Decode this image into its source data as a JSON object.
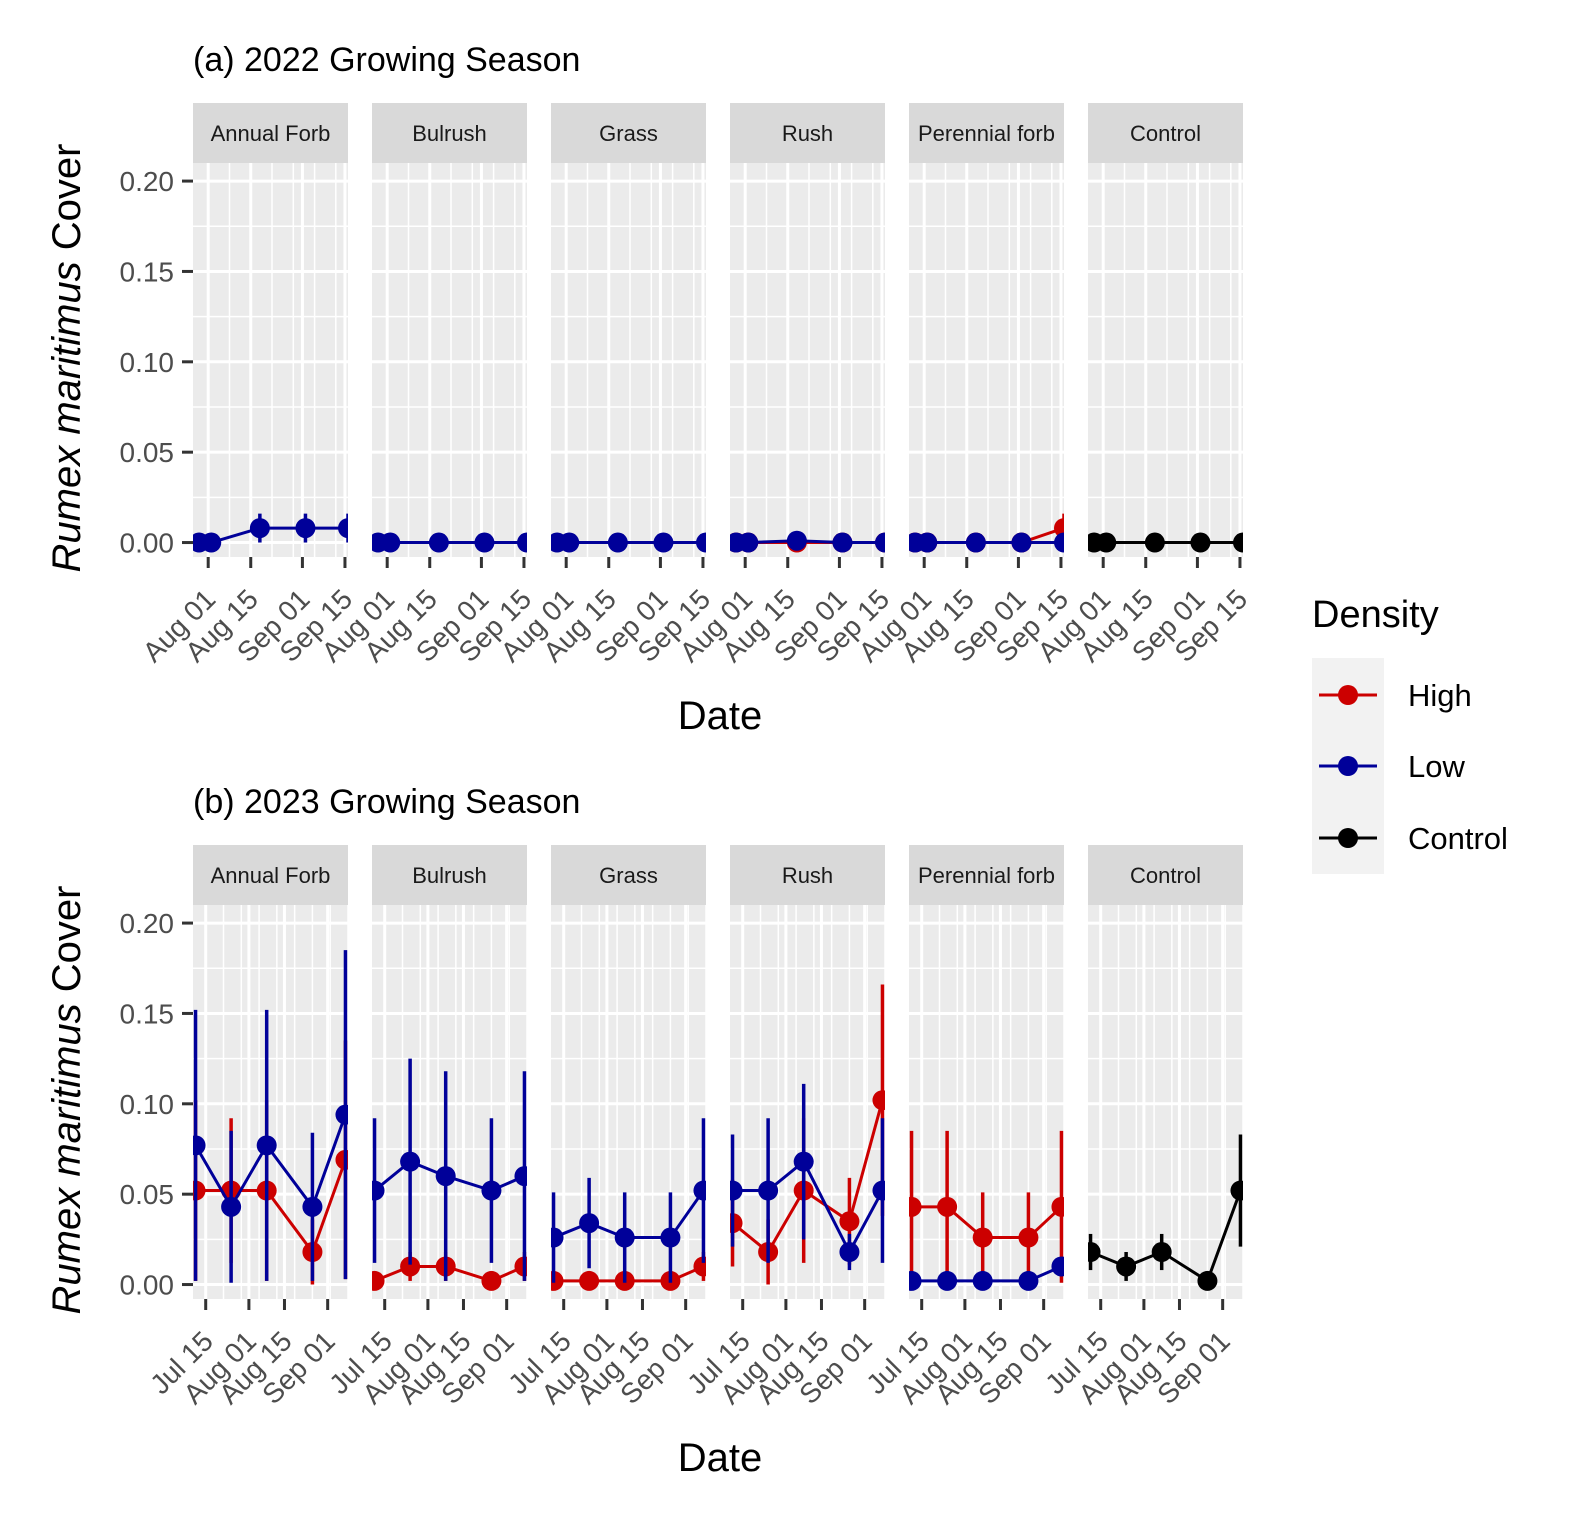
{
  "chart_data": [
    {
      "type": "line",
      "title": "(a) 2022 Growing Season",
      "xlabel": "Date",
      "ylabel_italic": "Rumex maritimus",
      "ylabel_rest": " Cover",
      "ylim": [
        -0.008,
        0.21
      ],
      "yticks": [
        0.0,
        0.05,
        0.1,
        0.15,
        0.2
      ],
      "yticklabels": [
        "0.00",
        "0.05",
        "0.10",
        "0.15",
        "0.20"
      ],
      "xlim": [
        "2022-07-27",
        "2022-09-16"
      ],
      "xticks": [
        "2022-08-01",
        "2022-08-15",
        "2022-09-01",
        "2022-09-15"
      ],
      "xticklabels": [
        "Aug 01",
        "Aug 15",
        "Sep 01",
        "Sep 15"
      ],
      "grid": true,
      "panels": [
        {
          "name": "Annual Forb",
          "series": [
            {
              "name": "Low",
              "x": [
                "2022-07-29",
                "2022-08-02",
                "2022-08-18",
                "2022-09-02",
                "2022-09-16"
              ],
              "y": [
                0,
                0,
                0.008,
                0.008,
                0.008
              ],
              "err": [
                0,
                0,
                0.008,
                0.008,
                0.008
              ]
            }
          ]
        },
        {
          "name": "Bulrush",
          "series": [
            {
              "name": "Low",
              "x": [
                "2022-07-29",
                "2022-08-02",
                "2022-08-18",
                "2022-09-02",
                "2022-09-16"
              ],
              "y": [
                0,
                0,
                0,
                0,
                0
              ],
              "err": [
                0,
                0,
                0,
                0,
                0
              ]
            }
          ]
        },
        {
          "name": "Grass",
          "series": [
            {
              "name": "Low",
              "x": [
                "2022-07-29",
                "2022-08-02",
                "2022-08-18",
                "2022-09-02",
                "2022-09-16"
              ],
              "y": [
                0,
                0,
                0,
                0,
                0
              ],
              "err": [
                0,
                0,
                0,
                0,
                0
              ]
            }
          ]
        },
        {
          "name": "Rush",
          "series": [
            {
              "name": "High",
              "x": [
                "2022-07-29",
                "2022-08-02",
                "2022-08-18",
                "2022-09-02",
                "2022-09-16"
              ],
              "y": [
                0,
                0,
                0,
                0,
                0
              ],
              "err": [
                0,
                0,
                0,
                0,
                0
              ]
            },
            {
              "name": "Low",
              "x": [
                "2022-07-29",
                "2022-08-02",
                "2022-08-18",
                "2022-09-02",
                "2022-09-16"
              ],
              "y": [
                0,
                0,
                0.001,
                0,
                0
              ],
              "err": [
                0,
                0,
                0.001,
                0,
                0
              ]
            }
          ]
        },
        {
          "name": "Perennial forb",
          "series": [
            {
              "name": "High",
              "x": [
                "2022-07-29",
                "2022-08-02",
                "2022-08-18",
                "2022-09-02",
                "2022-09-16"
              ],
              "y": [
                0,
                0,
                0,
                0,
                0.008
              ],
              "err": [
                0,
                0,
                0,
                0,
                0.008
              ]
            },
            {
              "name": "Low",
              "x": [
                "2022-07-29",
                "2022-08-02",
                "2022-08-18",
                "2022-09-02",
                "2022-09-16"
              ],
              "y": [
                0,
                0,
                0,
                0,
                0
              ],
              "err": [
                0,
                0,
                0,
                0,
                0
              ]
            }
          ]
        },
        {
          "name": "Control",
          "series": [
            {
              "name": "Control",
              "x": [
                "2022-07-29",
                "2022-08-02",
                "2022-08-18",
                "2022-09-02",
                "2022-09-16"
              ],
              "y": [
                0,
                0,
                0,
                0,
                0
              ],
              "err": [
                0,
                0,
                0,
                0,
                0
              ]
            }
          ]
        }
      ]
    },
    {
      "type": "line",
      "title": "(b) 2023 Growing Season",
      "xlabel": "Date",
      "ylabel_italic": "Rumex maritimus",
      "ylabel_rest": " Cover",
      "ylim": [
        -0.008,
        0.21
      ],
      "yticks": [
        0.0,
        0.05,
        0.1,
        0.15,
        0.2
      ],
      "yticklabels": [
        "0.00",
        "0.05",
        "0.10",
        "0.15",
        "0.20"
      ],
      "xlim": [
        "2023-07-10",
        "2023-09-09"
      ],
      "xticks": [
        "2023-07-15",
        "2023-08-01",
        "2023-08-15",
        "2023-09-01"
      ],
      "xticklabels": [
        "Jul 15",
        "Aug 01",
        "Aug 15",
        "Sep 01"
      ],
      "grid": true,
      "panels": [
        {
          "name": "Annual Forb",
          "series": [
            {
              "name": "High",
              "x": [
                "2023-07-11",
                "2023-07-25",
                "2023-08-08",
                "2023-08-26",
                "2023-09-08"
              ],
              "y": [
                0.052,
                0.052,
                0.052,
                0.018,
                0.069
              ],
              "err": [
                0.05,
                0.04,
                0.05,
                0.018,
                0.066
              ]
            },
            {
              "name": "Low",
              "x": [
                "2023-07-11",
                "2023-07-25",
                "2023-08-08",
                "2023-08-26",
                "2023-09-08"
              ],
              "y": [
                0.077,
                0.043,
                0.077,
                0.043,
                0.094
              ],
              "err": [
                0.075,
                0.042,
                0.075,
                0.041,
                0.091
              ]
            }
          ]
        },
        {
          "name": "Bulrush",
          "series": [
            {
              "name": "High",
              "x": [
                "2023-07-11",
                "2023-07-25",
                "2023-08-08",
                "2023-08-26",
                "2023-09-08"
              ],
              "y": [
                0.002,
                0.01,
                0.01,
                0.002,
                0.01
              ],
              "err": [
                0.002,
                0.008,
                0.008,
                0.002,
                0.008
              ]
            },
            {
              "name": "Low",
              "x": [
                "2023-07-11",
                "2023-07-25",
                "2023-08-08",
                "2023-08-26",
                "2023-09-08"
              ],
              "y": [
                0.052,
                0.068,
                0.06,
                0.052,
                0.06
              ],
              "err": [
                0.04,
                0.057,
                0.058,
                0.04,
                0.058
              ]
            }
          ]
        },
        {
          "name": "Grass",
          "series": [
            {
              "name": "High",
              "x": [
                "2023-07-11",
                "2023-07-25",
                "2023-08-08",
                "2023-08-26",
                "2023-09-08"
              ],
              "y": [
                0.002,
                0.002,
                0.002,
                0.002,
                0.01
              ],
              "err": [
                0.002,
                0.002,
                0.002,
                0.002,
                0.008
              ]
            },
            {
              "name": "Low",
              "x": [
                "2023-07-11",
                "2023-07-25",
                "2023-08-08",
                "2023-08-26",
                "2023-09-08"
              ],
              "y": [
                0.026,
                0.034,
                0.026,
                0.026,
                0.052
              ],
              "err": [
                0.025,
                0.025,
                0.025,
                0.025,
                0.04
              ]
            }
          ]
        },
        {
          "name": "Rush",
          "series": [
            {
              "name": "High",
              "x": [
                "2023-07-11",
                "2023-07-25",
                "2023-08-08",
                "2023-08-26",
                "2023-09-08"
              ],
              "y": [
                0.034,
                0.018,
                0.052,
                0.035,
                0.102
              ],
              "err": [
                0.024,
                0.018,
                0.04,
                0.024,
                0.064
              ]
            },
            {
              "name": "Low",
              "x": [
                "2023-07-11",
                "2023-07-25",
                "2023-08-08",
                "2023-08-26",
                "2023-09-08"
              ],
              "y": [
                0.052,
                0.052,
                0.068,
                0.018,
                0.052
              ],
              "err": [
                0.031,
                0.04,
                0.043,
                0.01,
                0.04
              ]
            }
          ]
        },
        {
          "name": "Perennial forb",
          "series": [
            {
              "name": "High",
              "x": [
                "2023-07-11",
                "2023-07-25",
                "2023-08-08",
                "2023-08-26",
                "2023-09-08"
              ],
              "y": [
                0.043,
                0.043,
                0.026,
                0.026,
                0.043
              ],
              "err": [
                0.042,
                0.042,
                0.025,
                0.025,
                0.042
              ]
            },
            {
              "name": "Low",
              "x": [
                "2023-07-11",
                "2023-07-25",
                "2023-08-08",
                "2023-08-26",
                "2023-09-08"
              ],
              "y": [
                0.002,
                0.002,
                0.002,
                0.002,
                0.01
              ],
              "err": [
                0,
                0,
                0,
                0,
                0.004
              ]
            }
          ]
        },
        {
          "name": "Control",
          "series": [
            {
              "name": "Control",
              "x": [
                "2023-07-11",
                "2023-07-25",
                "2023-08-08",
                "2023-08-26",
                "2023-09-08"
              ],
              "y": [
                0.018,
                0.01,
                0.018,
                0.002,
                0.052
              ],
              "err": [
                0.01,
                0.008,
                0.01,
                0.002,
                0.031
              ]
            }
          ]
        }
      ]
    }
  ],
  "legend": {
    "title": "Density",
    "placement": "right",
    "items": [
      {
        "label": "High",
        "color": "#CC0000"
      },
      {
        "label": "Low",
        "color": "#000099"
      },
      {
        "label": "Control",
        "color": "#000000"
      }
    ]
  },
  "colors": {
    "High": "#CC0000",
    "Low": "#000099",
    "Control": "#000000",
    "panel_background": "#EBEBEB",
    "strip_background": "#D9D9D9",
    "grid": "#FFFFFF"
  }
}
